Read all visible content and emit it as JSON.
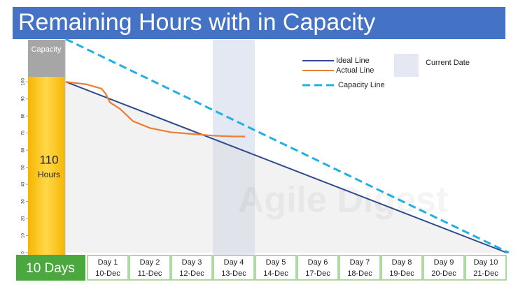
{
  "title": "Remaining Hours with in Capacity",
  "chart_data": {
    "type": "line",
    "xlim": [
      -0.5,
      10.05
    ],
    "ylim": [
      0,
      125
    ],
    "yticks": [
      0,
      10,
      20,
      30,
      40,
      50,
      60,
      70,
      80,
      90,
      100
    ],
    "capacity_label": "Capacity",
    "capacity_hours": 110,
    "capacity_unit": "Hours",
    "duration_label": "10 Days",
    "watermark": "Agile Digest",
    "days": [
      {
        "day": "Day 1",
        "date": "10-Dec"
      },
      {
        "day": "Day 2",
        "date": "11-Dec"
      },
      {
        "day": "Day 3",
        "date": "12-Dec"
      },
      {
        "day": "Day 4",
        "date": "13-Dec"
      },
      {
        "day": "Day 5",
        "date": "14-Dec"
      },
      {
        "day": "Day 6",
        "date": "17-Dec"
      },
      {
        "day": "Day 7",
        "date": "18-Dec"
      },
      {
        "day": "Day 8",
        "date": "19-Dec"
      },
      {
        "day": "Day 9",
        "date": "20-Dec"
      },
      {
        "day": "Day 10",
        "date": "21-Dec"
      }
    ],
    "current_date": {
      "label": "Current Date",
      "x": [
        3,
        4
      ],
      "color": "#e3e8f2"
    },
    "series": [
      {
        "name": "Ideal Line",
        "color": "#2f4b8c",
        "x": [
          -0.5,
          10
        ],
        "values": [
          100,
          0
        ]
      },
      {
        "name": "Actual Line",
        "color": "#ed7d31",
        "x": [
          -0.5,
          0,
          0.35,
          0.45,
          0.55,
          0.8,
          1.1,
          1.5,
          2,
          2.5,
          3,
          3.5,
          3.77
        ],
        "values": [
          100,
          98.5,
          96,
          93,
          88,
          84,
          77,
          73,
          70.5,
          69.5,
          68.5,
          68,
          68
        ]
      },
      {
        "name": "Capacity Line",
        "color": "#1fb0e6",
        "dashed": true,
        "x": [
          -0.5,
          10.05
        ],
        "values": [
          125,
          0
        ]
      }
    ]
  }
}
